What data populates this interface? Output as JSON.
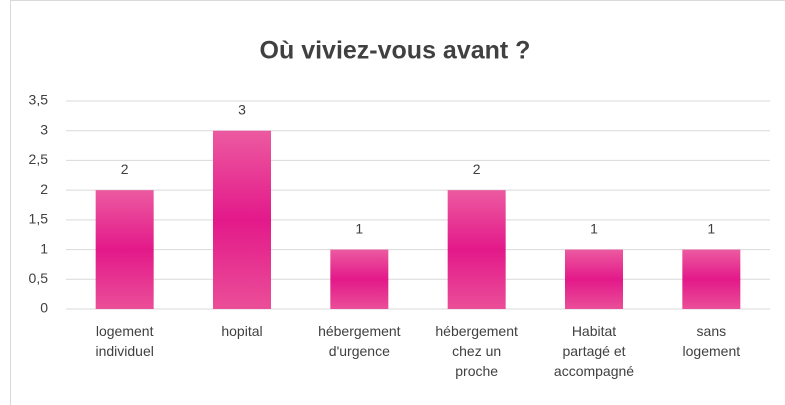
{
  "chart_data": {
    "type": "bar",
    "title": "Où viviez-vous avant ?",
    "categories": [
      "logement individuel",
      "hopital",
      "hébergement d'urgence",
      "hébergement chez un proche",
      "Habitat partagé et accompagné",
      "sans logement"
    ],
    "values": [
      2,
      3,
      1,
      2,
      1,
      1
    ],
    "color": "#e6338b",
    "ylim": [
      0,
      3.5
    ],
    "yticks": [
      0,
      {
        "value": 0.5,
        "label": "0,5"
      },
      1,
      {
        "value": 1.5,
        "label": "1,5"
      },
      2,
      {
        "value": 2.5,
        "label": "2,5"
      },
      3,
      {
        "value": 3.5,
        "label": "3,5"
      }
    ],
    "grid": true
  }
}
